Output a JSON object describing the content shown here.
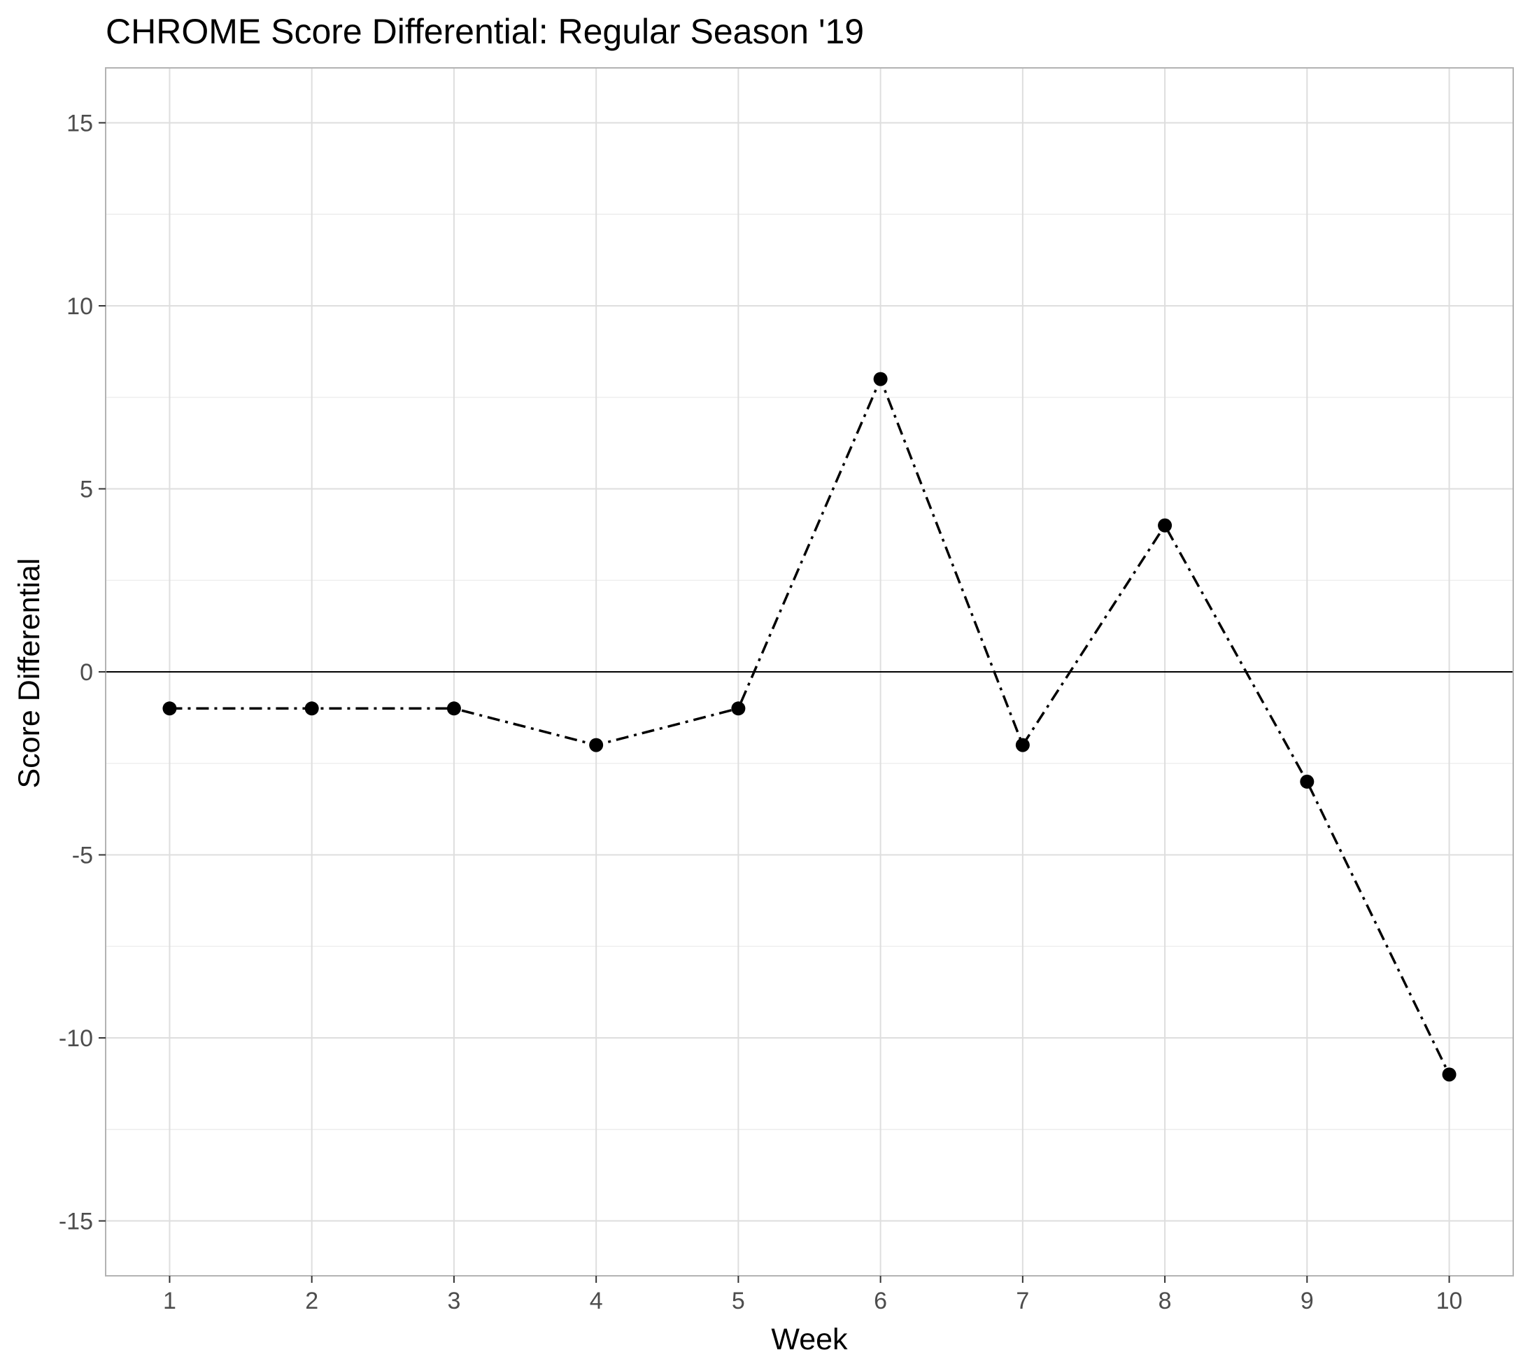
{
  "chart_data": {
    "type": "line",
    "title": "CHROME Score Differential: Regular Season '19",
    "xlabel": "Week",
    "ylabel": "Score Differential",
    "x": [
      1,
      2,
      3,
      4,
      5,
      6,
      7,
      8,
      9,
      10
    ],
    "x_ticks": [
      "1",
      "2",
      "3",
      "4",
      "5",
      "6",
      "7",
      "8",
      "9",
      "10"
    ],
    "y_ticks": [
      "-15",
      "-10",
      "-5",
      "0",
      "5",
      "10",
      "15"
    ],
    "series": [
      {
        "values": [
          -1,
          -1,
          -1,
          -2,
          -1,
          8,
          -2,
          4,
          -3,
          -11
        ],
        "line_style": "dashdot",
        "marker": "circle",
        "color": "#000000"
      }
    ],
    "reference_line": {
      "y": 0,
      "color": "#000000"
    },
    "xlim": [
      0.55,
      10.45
    ],
    "ylim": [
      -16.5,
      16.5
    ],
    "grid": true,
    "legend": "none",
    "panel_border_color": "#b3b3b3",
    "grid_color": "#dedede",
    "minor_grid_color": "#ebebeb"
  }
}
